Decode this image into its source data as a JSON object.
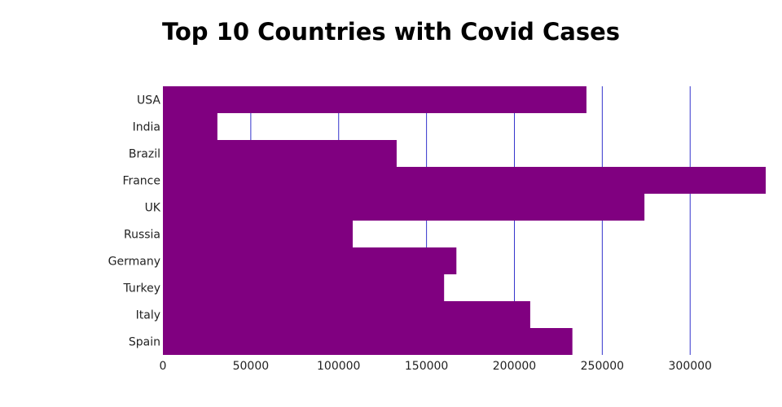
{
  "chart_data": {
    "type": "bar",
    "orientation": "horizontal",
    "title": "Top 10 Countries with Covid Cases",
    "xlabel": "",
    "ylabel": "",
    "categories": [
      "USA",
      "India",
      "Brazil",
      "France",
      "UK",
      "Russia",
      "Germany",
      "Turkey",
      "Italy",
      "Spain"
    ],
    "values": [
      241000,
      31000,
      133000,
      343000,
      274000,
      108000,
      167000,
      160000,
      209000,
      233000
    ],
    "xlim": [
      0,
      343000
    ],
    "x_ticks": [
      0,
      50000,
      100000,
      150000,
      200000,
      250000,
      300000
    ],
    "x_tick_labels": [
      "0",
      "50000",
      "100000",
      "150000",
      "200000",
      "250000",
      "300000"
    ],
    "grid": "vertical",
    "legend": "none",
    "colors": {
      "bar": "#800080",
      "grid": "#3333cc"
    }
  }
}
